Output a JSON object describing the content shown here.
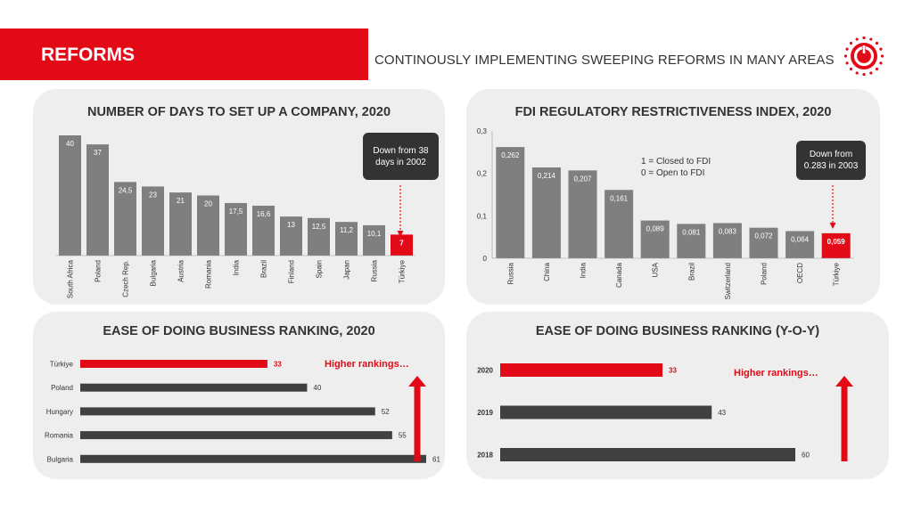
{
  "header": {
    "title": "REFORMS",
    "subtitle": "CONTINOUSLY IMPLEMENTING SWEEPING REFORMS IN MANY AREAS"
  },
  "colors": {
    "accent": "#e30a17",
    "bar_gray": "#7f7f7f",
    "bar_dark": "#404040",
    "panel_bg": "#eeeeee"
  },
  "logo": {
    "icon": "presidency-investment-office-logo"
  },
  "panels": {
    "days": {
      "title": "NUMBER OF DAYS TO SET UP A COMPANY, 2020",
      "callout": "Down from 38 days in 2002"
    },
    "fdi": {
      "title": "FDI REGULATORY RESTRICTIVENESS INDEX, 2020",
      "callout": "Down from 0.283 in 2003",
      "note_line1": "1 = Closed to FDI",
      "note_line2": "0 = Open to FDI"
    },
    "ease2020": {
      "title": "EASE OF DOING BUSINESS RANKING, 2020",
      "note": "Higher rankings…"
    },
    "easeYoy": {
      "title": "EASE OF DOING BUSINESS RANKING (Y-O-Y)",
      "note": "Higher rankings…"
    }
  },
  "chart_data": [
    {
      "id": "days",
      "type": "bar",
      "title": "NUMBER OF DAYS TO SET UP A COMPANY, 2020",
      "categories": [
        "South Africa",
        "Poland",
        "Czech Rep.",
        "Bulgaria",
        "Austria",
        "Romania",
        "India",
        "Brazil",
        "Finland",
        "Spain",
        "Japan",
        "Russia",
        "Türkiye"
      ],
      "values": [
        40,
        37,
        24.5,
        23,
        21,
        20,
        17.5,
        16.6,
        13,
        12.5,
        11.2,
        10.1,
        7
      ],
      "value_labels": [
        "40",
        "37",
        "24,5",
        "23",
        "21",
        "20",
        "17,5",
        "16,6",
        "13",
        "12,5",
        "11,2",
        "10,1",
        "7"
      ],
      "highlight": "Türkiye",
      "ylim": [
        0,
        40
      ],
      "grid": false
    },
    {
      "id": "fdi",
      "type": "bar",
      "title": "FDI REGULATORY RESTRICTIVENESS INDEX, 2020",
      "categories": [
        "Russia",
        "China",
        "India",
        "Canada",
        "USA",
        "Brazil",
        "Switzerland",
        "Poland",
        "OECD",
        "Türkiye"
      ],
      "values": [
        0.262,
        0.214,
        0.207,
        0.161,
        0.089,
        0.081,
        0.083,
        0.072,
        0.064,
        0.059
      ],
      "value_labels": [
        "0,262",
        "0,214",
        "0,207",
        "0,161",
        "0,089",
        "0,081",
        "0,083",
        "0,072",
        "0,064",
        "0,059"
      ],
      "highlight": "Türkiye",
      "ylim": [
        0,
        0.3
      ],
      "yticks": [
        "0",
        "0,1",
        "0,2",
        "0,3"
      ],
      "grid": false
    },
    {
      "id": "ease2020",
      "type": "bar",
      "orientation": "horizontal",
      "title": "EASE OF DOING BUSINESS RANKING, 2020",
      "categories": [
        "Türkiye",
        "Poland",
        "Hungary",
        "Romania",
        "Bulgaria"
      ],
      "values": [
        33,
        40,
        52,
        55,
        61
      ],
      "highlight": "Türkiye",
      "xlim": [
        0,
        61
      ]
    },
    {
      "id": "easeYoy",
      "type": "bar",
      "orientation": "horizontal",
      "title": "EASE OF DOING BUSINESS RANKING (Y-O-Y)",
      "categories": [
        "2020",
        "2019",
        "2018"
      ],
      "values": [
        33,
        43,
        60
      ],
      "highlight": "2020",
      "xlim": [
        0,
        60
      ]
    }
  ]
}
